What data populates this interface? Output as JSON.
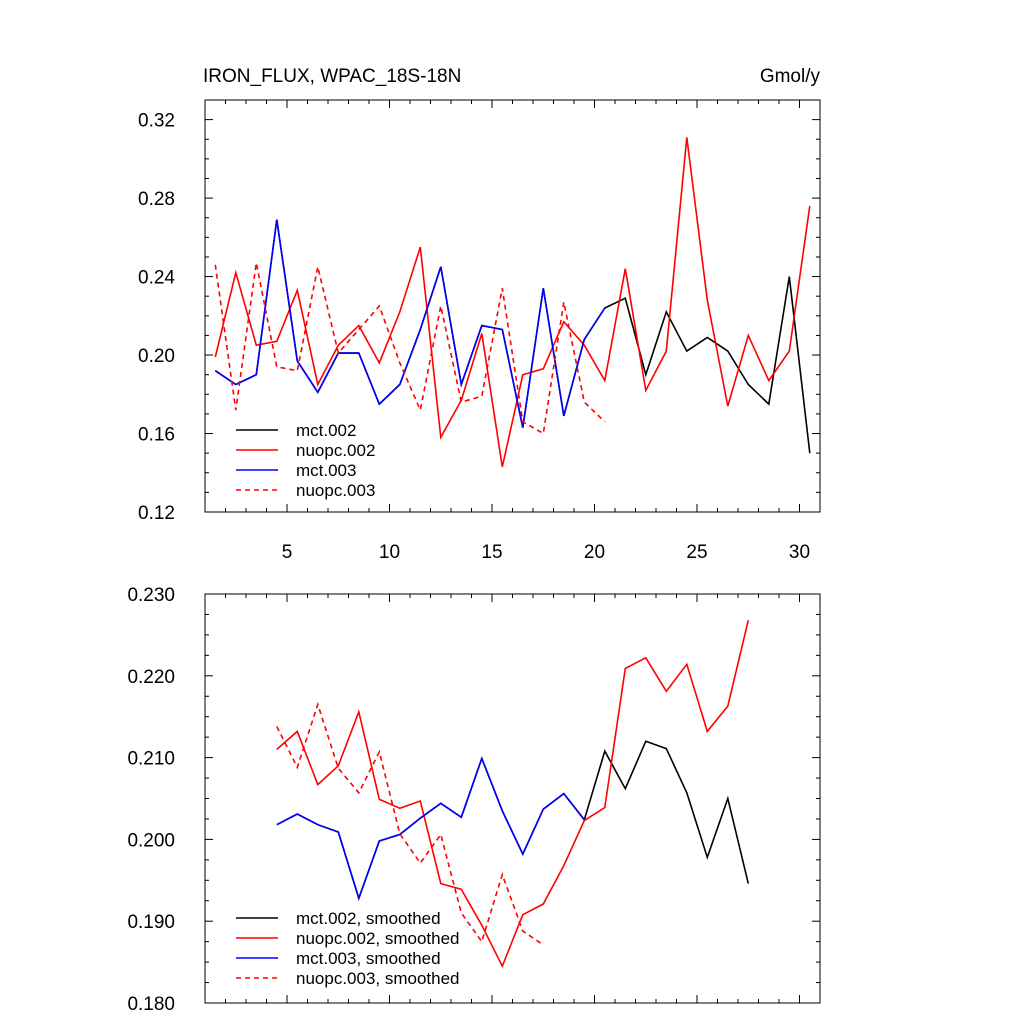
{
  "header": {
    "title": "IRON_FLUX, WPAC_18S-18N",
    "units": "Gmol/y"
  },
  "chart_data": [
    {
      "type": "line",
      "title": "IRON_FLUX, WPAC_18S-18N",
      "units": "Gmol/y",
      "xlim": [
        1,
        31
      ],
      "ylim": [
        0.12,
        0.33
      ],
      "xticks": [
        5,
        10,
        15,
        20,
        25,
        30
      ],
      "xtick_labels": [
        "5",
        "10",
        "15",
        "20",
        "25",
        "30"
      ],
      "yticks": [
        0.12,
        0.16,
        0.2,
        0.24,
        0.28,
        0.32
      ],
      "ytick_labels": [
        "0.12",
        "0.16",
        "0.20",
        "0.24",
        "0.28",
        "0.32"
      ],
      "legend_position": "bottom-left",
      "series": [
        {
          "name": "mct.002",
          "color": "#000000",
          "dash": "solid",
          "x": [
            1.5,
            2.5,
            3.5,
            4.5,
            5.5,
            6.5,
            7.5,
            8.5,
            9.5,
            10.5,
            11.5,
            12.5,
            13.5,
            14.5,
            15.5,
            16.5,
            17.5,
            18.5,
            19.5,
            20.5,
            21.5,
            22.5,
            23.5,
            24.5,
            25.5,
            26.5,
            27.5,
            28.5,
            29.5,
            30.5
          ],
          "values": [
            0.192,
            0.185,
            0.19,
            0.269,
            0.197,
            0.181,
            0.201,
            0.201,
            0.175,
            0.185,
            0.213,
            0.245,
            0.185,
            0.215,
            0.213,
            0.163,
            0.234,
            0.169,
            0.208,
            0.224,
            0.229,
            0.19,
            0.222,
            0.202,
            0.209,
            0.202,
            0.185,
            0.175,
            0.24,
            0.15
          ]
        },
        {
          "name": "nuopc.002",
          "color": "#ff0000",
          "dash": "solid",
          "x": [
            1.5,
            2.5,
            3.5,
            4.5,
            5.5,
            6.5,
            7.5,
            8.5,
            9.5,
            10.5,
            11.5,
            12.5,
            13.5,
            14.5,
            15.5,
            16.5,
            17.5,
            18.5,
            19.5,
            20.5,
            21.5,
            22.5,
            23.5,
            24.5,
            25.5,
            26.5,
            27.5,
            28.5,
            29.5,
            30.5
          ],
          "values": [
            0.199,
            0.242,
            0.205,
            0.207,
            0.233,
            0.185,
            0.205,
            0.215,
            0.196,
            0.222,
            0.255,
            0.158,
            0.177,
            0.211,
            0.143,
            0.19,
            0.193,
            0.217,
            0.205,
            0.187,
            0.244,
            0.182,
            0.202,
            0.311,
            0.228,
            0.174,
            0.21,
            0.187,
            0.202,
            0.276
          ]
        },
        {
          "name": "mct.003",
          "color": "#0000ff",
          "dash": "solid",
          "x": [
            1.5,
            2.5,
            3.5,
            4.5,
            5.5,
            6.5,
            7.5,
            8.5,
            9.5,
            10.5,
            11.5,
            12.5,
            13.5,
            14.5,
            15.5,
            16.5,
            17.5,
            18.5,
            19.5,
            20.5
          ],
          "values": [
            0.192,
            0.185,
            0.19,
            0.269,
            0.197,
            0.181,
            0.201,
            0.201,
            0.175,
            0.185,
            0.213,
            0.245,
            0.185,
            0.215,
            0.213,
            0.163,
            0.234,
            0.169,
            0.208,
            0.224
          ]
        },
        {
          "name": "nuopc.003",
          "color": "#ff0000",
          "dash": "dashed",
          "x": [
            1.5,
            2.5,
            3.5,
            4.5,
            5.5,
            6.5,
            7.5,
            8.5,
            9.5,
            10.5,
            11.5,
            12.5,
            13.5,
            14.5,
            15.5,
            16.5,
            17.5,
            18.5,
            19.5,
            20.5
          ],
          "values": [
            0.246,
            0.172,
            0.247,
            0.194,
            0.192,
            0.245,
            0.201,
            0.213,
            0.225,
            0.196,
            0.172,
            0.225,
            0.176,
            0.179,
            0.234,
            0.166,
            0.16,
            0.227,
            0.176,
            0.166
          ]
        }
      ]
    },
    {
      "type": "line",
      "xlim": [
        1,
        31
      ],
      "ylim": [
        0.18,
        0.23
      ],
      "xticks": [
        5,
        10,
        15,
        20,
        25,
        30
      ],
      "xtick_labels": [],
      "yticks": [
        0.18,
        0.19,
        0.2,
        0.21,
        0.22,
        0.23
      ],
      "ytick_labels": [
        "0.180",
        "0.190",
        "0.200",
        "0.210",
        "0.220",
        "0.230"
      ],
      "legend_position": "bottom-left",
      "series": [
        {
          "name": "mct.002, smoothed",
          "color": "#000000",
          "dash": "solid",
          "x": [
            4.5,
            5.5,
            6.5,
            7.5,
            8.5,
            9.5,
            10.5,
            11.5,
            12.5,
            13.5,
            14.5,
            15.5,
            16.5,
            17.5,
            18.5,
            19.5,
            20.5,
            21.5,
            22.5,
            23.5,
            24.5,
            25.5,
            26.5,
            27.5
          ],
          "values": [
            0.2018,
            0.2031,
            0.2018,
            0.2009,
            0.1928,
            0.1998,
            0.2006,
            0.2026,
            0.2044,
            0.2027,
            0.2099,
            0.2035,
            0.1982,
            0.2037,
            0.2056,
            0.2024,
            0.2108,
            0.2062,
            0.212,
            0.2111,
            0.2057,
            0.1978,
            0.205,
            0.1946
          ]
        },
        {
          "name": "nuopc.002, smoothed",
          "color": "#ff0000",
          "dash": "solid",
          "x": [
            4.5,
            5.5,
            6.5,
            7.5,
            8.5,
            9.5,
            10.5,
            11.5,
            12.5,
            13.5,
            14.5,
            15.5,
            16.5,
            17.5,
            18.5,
            19.5,
            20.5,
            21.5,
            22.5,
            23.5,
            24.5,
            25.5,
            26.5,
            27.5
          ],
          "values": [
            0.211,
            0.2132,
            0.2067,
            0.209,
            0.2156,
            0.2049,
            0.2038,
            0.2047,
            0.1946,
            0.1939,
            0.1895,
            0.1845,
            0.1908,
            0.1921,
            0.1968,
            0.2023,
            0.2039,
            0.2209,
            0.2222,
            0.2181,
            0.2214,
            0.2132,
            0.2163,
            0.2268
          ]
        },
        {
          "name": "mct.003, smoothed",
          "color": "#0000ff",
          "dash": "solid",
          "x": [
            4.5,
            5.5,
            6.5,
            7.5,
            8.5,
            9.5,
            10.5,
            11.5,
            12.5,
            13.5,
            14.5,
            15.5,
            16.5,
            17.5,
            18.5,
            19.5
          ],
          "values": [
            0.2018,
            0.2031,
            0.2018,
            0.2009,
            0.1928,
            0.1998,
            0.2006,
            0.2026,
            0.2044,
            0.2027,
            0.2099,
            0.2035,
            0.1982,
            0.2037,
            0.2056,
            0.2024
          ]
        },
        {
          "name": "nuopc.003, smoothed",
          "color": "#ff0000",
          "dash": "dashed",
          "x": [
            4.5,
            5.5,
            6.5,
            7.5,
            8.5,
            9.5,
            10.5,
            11.5,
            12.5,
            13.5,
            14.5,
            15.5,
            16.5,
            17.5
          ],
          "values": [
            0.2138,
            0.2088,
            0.2165,
            0.2087,
            0.2057,
            0.2107,
            0.2007,
            0.1971,
            0.2006,
            0.191,
            0.1875,
            0.1957,
            0.1888,
            0.1871
          ]
        }
      ]
    }
  ]
}
